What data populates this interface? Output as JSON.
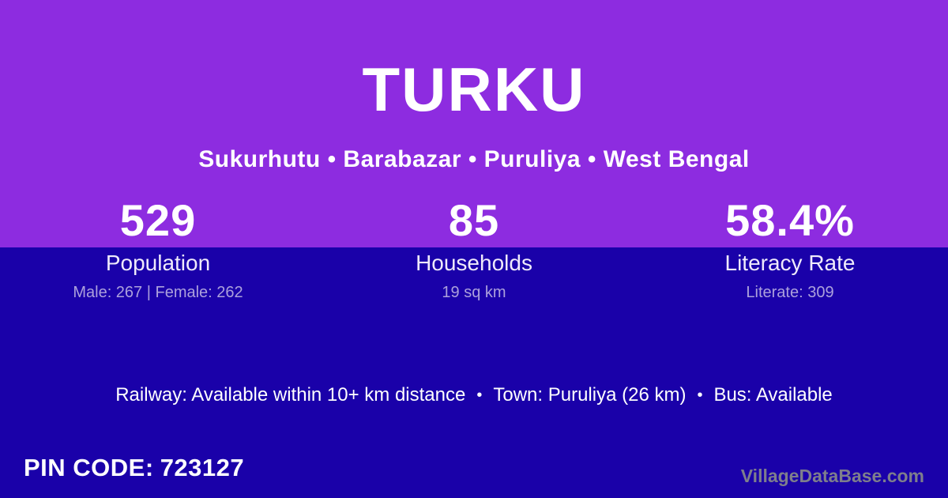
{
  "page": {
    "title": "TURKU",
    "subtitle": "Sukurhutu • Barabazar • Puruliya • West Bengal"
  },
  "colors": {
    "top_background": "#8D2CE0",
    "bottom_background": "#1A01A9",
    "primary_text": "#FFFFFF",
    "label_text": "#EFEAFB",
    "detail_text": "#ACA1DC",
    "watermark_text": "#7E7E8C"
  },
  "stats": [
    {
      "value": "529",
      "label": "Population",
      "detail": "Male: 267 | Female: 262"
    },
    {
      "value": "85",
      "label": "Households",
      "detail": "19 sq km"
    },
    {
      "value": "58.4%",
      "label": "Literacy Rate",
      "detail": "Literate: 309"
    }
  ],
  "info_bar": {
    "separator": "•",
    "segments": [
      "Railway: Available within 10+ km distance",
      "Town: Puruliya (26 km)",
      "Bus: Available"
    ]
  },
  "footer": {
    "pin_label": "PIN CODE:",
    "pin_value": "723127",
    "watermark": "VillageDataBase.com"
  }
}
